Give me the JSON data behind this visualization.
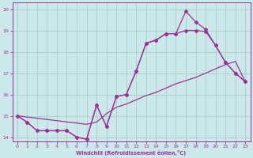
{
  "xlabel": "Windchill (Refroidissement éolien,°C)",
  "xlim": [
    -0.5,
    23.5
  ],
  "ylim": [
    13.8,
    20.3
  ],
  "xticks": [
    0,
    1,
    2,
    3,
    4,
    5,
    6,
    7,
    8,
    9,
    10,
    11,
    12,
    13,
    14,
    15,
    16,
    17,
    18,
    19,
    20,
    21,
    22,
    23
  ],
  "yticks": [
    14,
    15,
    16,
    17,
    18,
    19,
    20
  ],
  "bg_color": "#cce8ea",
  "grid_color": "#aacccc",
  "line_color": "#993399",
  "line1_x": [
    0,
    1,
    2,
    3,
    4,
    5,
    6,
    7,
    8,
    9,
    10,
    11,
    12,
    13,
    14,
    15,
    16,
    17,
    18,
    19,
    20,
    21,
    22,
    23
  ],
  "line1_y": [
    15.0,
    14.7,
    14.3,
    14.3,
    14.3,
    14.3,
    14.0,
    13.9,
    15.5,
    14.5,
    15.9,
    16.0,
    17.1,
    18.4,
    18.55,
    18.85,
    18.85,
    19.9,
    19.4,
    19.05,
    18.3,
    17.5,
    17.0,
    16.6
  ],
  "line2_x": [
    0,
    1,
    2,
    3,
    4,
    5,
    6,
    7,
    8,
    9,
    10,
    11,
    12,
    13,
    14,
    15,
    16,
    17,
    18,
    19,
    20,
    21,
    22,
    23
  ],
  "line2_y": [
    15.0,
    14.7,
    14.3,
    14.3,
    14.3,
    14.3,
    14.0,
    13.9,
    15.5,
    14.5,
    15.9,
    16.0,
    17.1,
    18.4,
    18.55,
    18.85,
    18.85,
    19.0,
    19.0,
    18.95,
    18.3,
    17.5,
    17.0,
    16.6
  ],
  "line3_x": [
    0,
    7,
    8,
    9,
    10,
    11,
    12,
    13,
    14,
    15,
    16,
    17,
    18,
    19,
    20,
    21,
    22,
    23
  ],
  "line3_y": [
    15.0,
    14.6,
    14.7,
    15.1,
    15.4,
    15.55,
    15.75,
    15.95,
    16.1,
    16.3,
    16.5,
    16.65,
    16.8,
    17.0,
    17.2,
    17.4,
    17.55,
    16.6
  ],
  "marker": "D",
  "markersize": 2.0,
  "linewidth": 0.9
}
